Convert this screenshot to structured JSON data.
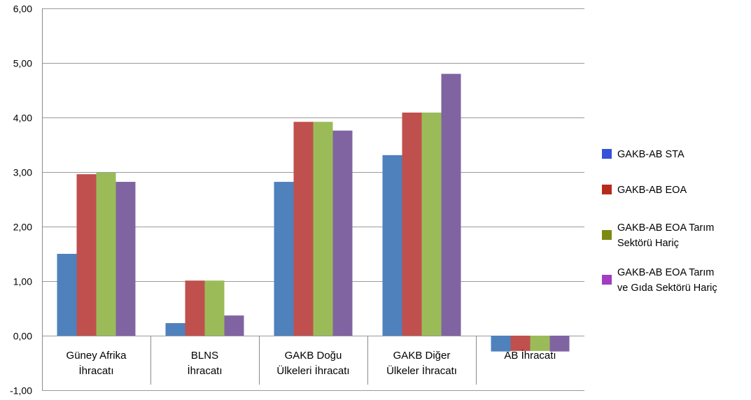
{
  "chart_data": {
    "type": "bar",
    "categories": [
      [
        "Güney Afrika",
        "İhracatı"
      ],
      [
        "BLNS",
        "İhracatı"
      ],
      [
        "GAKB Doğu",
        "Ülkeleri İhracatı"
      ],
      [
        "GAKB Diğer",
        "Ülkeler İhracatı"
      ],
      [
        "AB İhracatı"
      ]
    ],
    "series": [
      {
        "name": "GAKB-AB STA",
        "values": [
          1.5,
          0.23,
          2.82,
          3.31,
          -0.29
        ],
        "bar_color": "#4f81bd",
        "legend_color": "#3552d8"
      },
      {
        "name": "GAKB-AB EOA",
        "values": [
          2.96,
          1.01,
          3.92,
          4.09,
          -0.28
        ],
        "bar_color": "#c0504d",
        "legend_color": "#b82a1c"
      },
      {
        "name": [
          "GAKB-AB EOA Tarım",
          "Sektörü Hariç"
        ],
        "values": [
          2.99,
          1.01,
          3.92,
          4.09,
          -0.28
        ],
        "bar_color": "#9bbb59",
        "legend_color": "#7d8a12"
      },
      {
        "name": [
          "GAKB-AB EOA Tarım",
          "ve Gıda Sektörü Hariç"
        ],
        "values": [
          2.82,
          0.37,
          3.76,
          4.8,
          -0.29
        ],
        "bar_color": "#8064a2",
        "legend_color": "#a23cc0"
      }
    ],
    "yticks": [
      -1,
      0,
      1,
      2,
      3,
      4,
      5,
      6
    ],
    "ytick_labels": [
      "-1,00",
      "0,00",
      "1,00",
      "2,00",
      "3,00",
      "4,00",
      "5,00",
      "6,00"
    ],
    "ylim": [
      -1,
      6
    ],
    "grid": true,
    "legend_position": "right",
    "title": "",
    "xlabel": "",
    "ylabel": ""
  }
}
